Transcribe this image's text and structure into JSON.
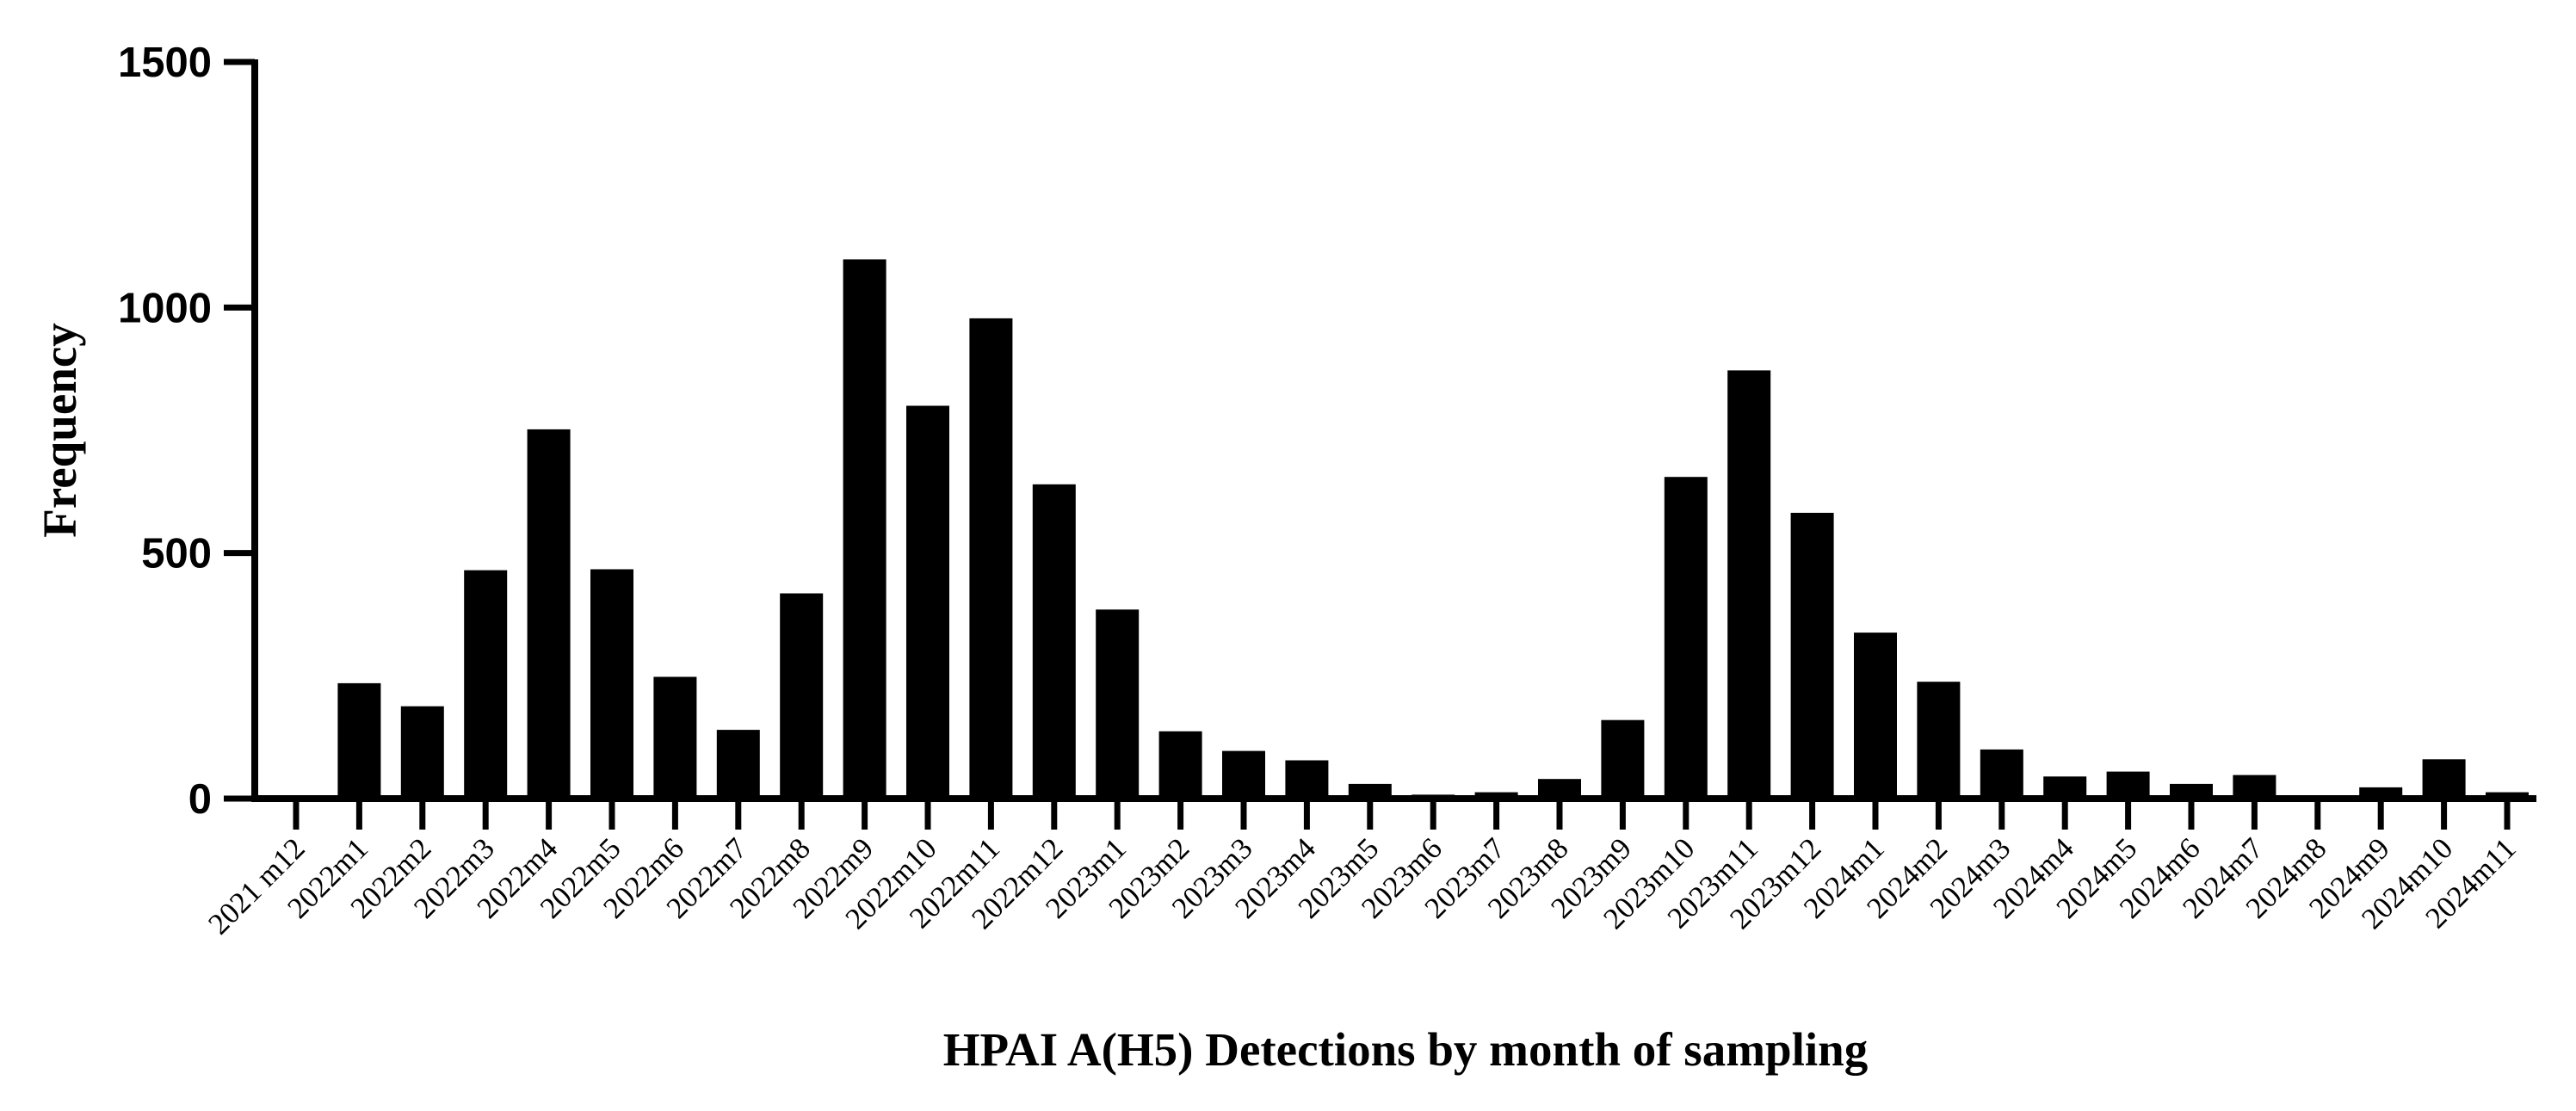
{
  "chart_data": {
    "type": "bar",
    "title": "",
    "xlabel": "HPAI A(H5) Detections by month of sampling",
    "ylabel": "Frequency",
    "ylim": [
      0,
      1500
    ],
    "yticks": [
      "0",
      "500",
      "1000",
      "1500"
    ],
    "grid": false,
    "bar_color": "#000000",
    "categories": [
      "2021 m12",
      "2022m1",
      "2022m2",
      "2022m3",
      "2022m4",
      "2022m5",
      "2022m6",
      "2022m7",
      "2022m8",
      "2022m9",
      "2022m10",
      "2022m11",
      "2022m12",
      "2023m1",
      "2023m2",
      "2023m3",
      "2023m4",
      "2023m5",
      "2023m6",
      "2023m7",
      "2023m8",
      "2023m9",
      "2023m10",
      "2023m11",
      "2023m12",
      "2024m1",
      "2024m2",
      "2024m3",
      "2024m4",
      "2024m5",
      "2024m6",
      "2024m7",
      "2024m8",
      "2024m9",
      "2024m10",
      "2024m11"
    ],
    "values": [
      5,
      235,
      188,
      465,
      752,
      467,
      248,
      140,
      418,
      1098,
      800,
      978,
      640,
      385,
      137,
      97,
      78,
      30,
      8,
      13,
      40,
      160,
      655,
      872,
      582,
      338,
      238,
      100,
      45,
      55,
      30,
      48,
      5,
      23,
      80,
      13
    ]
  }
}
